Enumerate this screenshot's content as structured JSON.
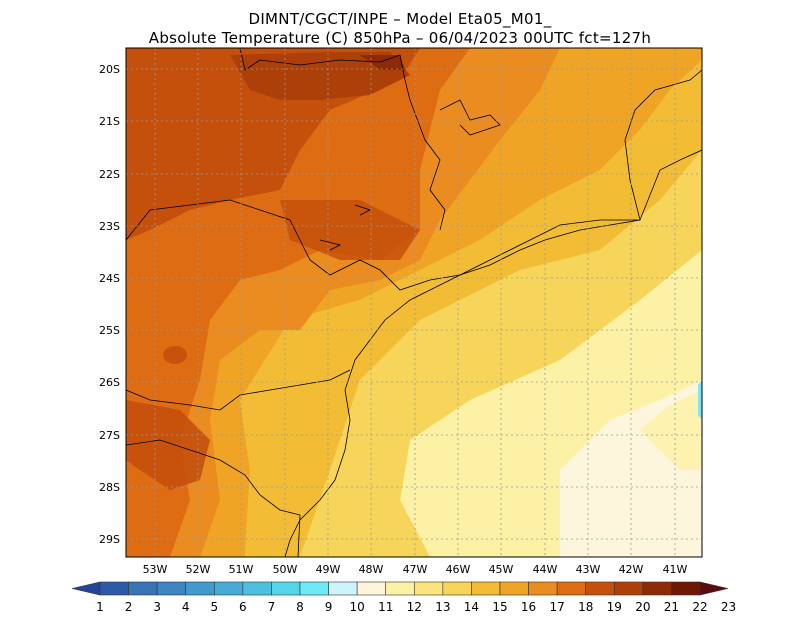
{
  "header": {
    "line1": "DIMNT/CGCT/INPE –  Model Eta05_M01_",
    "line2": "Absolute Temperature (C) 850hPa –  06/04/2023 00UTC fct=127h"
  },
  "map": {
    "lat_labels": [
      "20S",
      "21S",
      "22S",
      "23S",
      "24S",
      "25S",
      "26S",
      "27S",
      "28S",
      "29S"
    ],
    "lon_labels": [
      "53W",
      "52W",
      "51W",
      "50W",
      "49W",
      "48W",
      "47W",
      "46W",
      "45W",
      "44W",
      "43W",
      "42W",
      "41W"
    ],
    "grid": "dotted",
    "field_colors": {
      "very_warm": "#8f2a06",
      "warm_dark": "#c5500c",
      "warm": "#dd6c12",
      "orange": "#ea8c1f",
      "orange_light": "#f0a426",
      "amber": "#f2bc35",
      "yellow": "#f6d55a",
      "yellow_light": "#fae57c",
      "pale": "#fdf1a5",
      "cream": "#fdf6dc",
      "cyan": "#80e6f5"
    }
  },
  "colorbar": {
    "labels": [
      "1",
      "2",
      "3",
      "4",
      "5",
      "6",
      "7",
      "8",
      "9",
      "10",
      "11",
      "12",
      "13",
      "14",
      "15",
      "16",
      "17",
      "18",
      "19",
      "20",
      "21",
      "22",
      "23"
    ],
    "colors": [
      "#22449a",
      "#2c5aa8",
      "#3873b6",
      "#3d86c2",
      "#4199cc",
      "#46acd6",
      "#4bc0df",
      "#55d6e9",
      "#6eeaf7",
      "#cdf3fb",
      "#fdf6dc",
      "#fdf1a5",
      "#fae57c",
      "#f6d55a",
      "#f2bc35",
      "#f0a426",
      "#ea8c1f",
      "#dd6c12",
      "#c5500c",
      "#ad3f08",
      "#8f2a06",
      "#6e1805",
      "#5a0c10"
    ]
  }
}
